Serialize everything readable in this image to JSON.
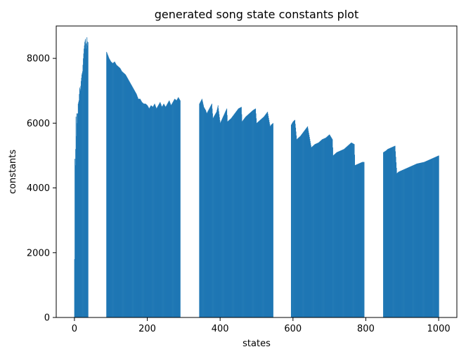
{
  "chart_data": {
    "type": "bar",
    "title": "generated song state constants plot",
    "xlabel": "states",
    "ylabel": "constants",
    "xlim": [
      -50,
      1050
    ],
    "ylim": [
      0,
      9000
    ],
    "xticks": [
      "0",
      "200",
      "400",
      "600",
      "800",
      "1000"
    ],
    "yticks": [
      "0",
      "2000",
      "4000",
      "6000",
      "8000"
    ],
    "grid": false,
    "legend": "none",
    "bar_color": "#1f77b4",
    "segments": [
      {
        "x": [
          0,
          1,
          2,
          3,
          4,
          5,
          6,
          7,
          8,
          9,
          10,
          12,
          14,
          16,
          18,
          20,
          22,
          24,
          26,
          28,
          30,
          32,
          34,
          36,
          37
        ],
        "y": [
          1800,
          4900,
          4700,
          5200,
          6200,
          5600,
          6300,
          6000,
          6300,
          6300,
          6600,
          6700,
          7100,
          7000,
          7300,
          7500,
          7600,
          8000,
          8300,
          8500,
          8600,
          8300,
          8650,
          8400,
          8500
        ]
      },
      {
        "x": [
          88,
          95,
          100,
          105,
          110,
          115,
          120,
          125,
          130,
          135,
          140,
          145,
          150,
          155,
          160,
          165,
          170,
          175,
          180,
          185,
          190,
          195,
          200,
          205,
          210,
          215,
          220,
          225,
          230,
          235,
          240,
          245,
          250,
          255,
          260,
          265,
          270,
          275,
          280,
          285,
          290
        ],
        "y": [
          8200,
          8000,
          7900,
          7850,
          7900,
          7800,
          7750,
          7700,
          7600,
          7550,
          7500,
          7400,
          7300,
          7200,
          7100,
          7000,
          6900,
          6750,
          6750,
          6650,
          6600,
          6600,
          6550,
          6450,
          6550,
          6500,
          6600,
          6450,
          6550,
          6650,
          6500,
          6600,
          6500,
          6600,
          6700,
          6550,
          6650,
          6750,
          6700,
          6800,
          6700
        ]
      },
      {
        "x": [
          343,
          350,
          355,
          360,
          363,
          370,
          377,
          380,
          390,
          394,
          400,
          410,
          418,
          420,
          430,
          440,
          450,
          458,
          460,
          470,
          480,
          490,
          497,
          500,
          510,
          520,
          530,
          537,
          540,
          545
        ],
        "y": [
          6600,
          6750,
          6500,
          6400,
          6300,
          6450,
          6600,
          6150,
          6350,
          6550,
          6000,
          6250,
          6450,
          6050,
          6150,
          6300,
          6450,
          6500,
          6050,
          6200,
          6300,
          6400,
          6450,
          6000,
          6100,
          6200,
          6350,
          5900,
          5950,
          6000
        ]
      },
      {
        "x": [
          595,
          600,
          605,
          610,
          620,
          630,
          640,
          650,
          660,
          670,
          680,
          690,
          700,
          708,
          710,
          720,
          730,
          740,
          750,
          760,
          768,
          770,
          780,
          790,
          795
        ],
        "y": [
          5950,
          6050,
          6100,
          5500,
          5600,
          5750,
          5900,
          5250,
          5350,
          5400,
          5500,
          5550,
          5650,
          5500,
          5000,
          5100,
          5150,
          5200,
          5300,
          5400,
          5350,
          4700,
          4750,
          4800,
          4800
        ]
      },
      {
        "x": [
          848,
          855,
          860,
          870,
          880,
          885,
          890,
          900,
          920,
          940,
          960,
          980,
          1000
        ],
        "y": [
          5100,
          5150,
          5200,
          5250,
          5300,
          4450,
          4500,
          4550,
          4650,
          4750,
          4800,
          4900,
          5000
        ]
      }
    ]
  }
}
